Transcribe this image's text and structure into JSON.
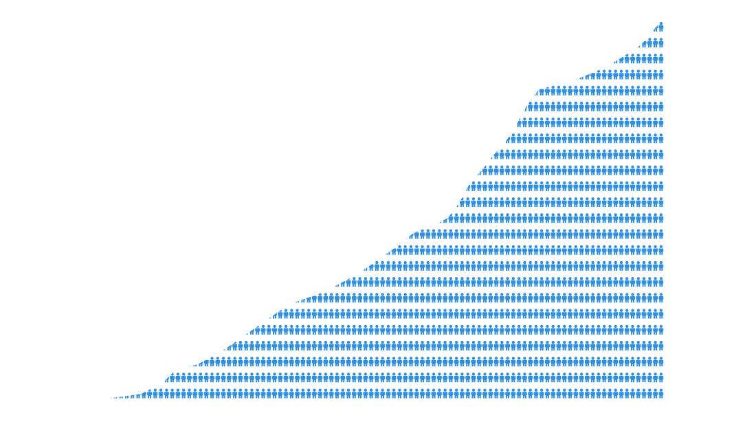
{
  "chart_data": {
    "type": "area",
    "x": [
      0,
      4,
      8,
      10,
      12,
      14,
      18,
      22,
      28,
      34,
      40,
      46,
      52,
      56,
      60,
      62,
      64,
      66,
      68,
      70,
      72,
      74,
      76,
      78,
      80,
      84,
      88,
      92,
      96,
      100
    ],
    "values": [
      0,
      0.5,
      1,
      2,
      3,
      5,
      6,
      8,
      12,
      16,
      18,
      21,
      25,
      28,
      29.5,
      30.5,
      33,
      36.5,
      38.5,
      41,
      43,
      46,
      49.5,
      52,
      52.5,
      53.5,
      55,
      57,
      59.5,
      64
    ],
    "xlim": [
      0,
      100
    ],
    "ylim": [
      0,
      64
    ],
    "grid": false,
    "legend": "none",
    "mark": "person-icon",
    "color": "#2e90e5"
  }
}
